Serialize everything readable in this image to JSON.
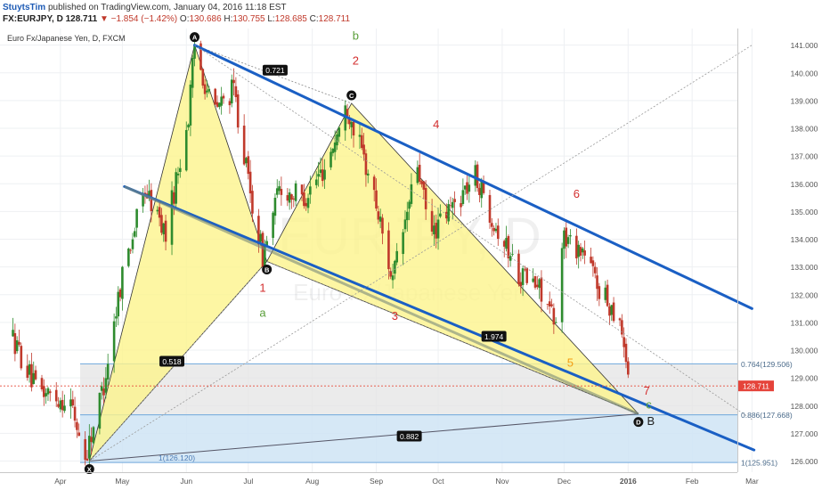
{
  "header": {
    "line1": {
      "user": "StuytsTim",
      "rest": " published on TradingView.com, January 04, 2016 11:18 EST"
    },
    "line2": {
      "symbol": "FX:EURJPY, D",
      "price": " 128.711 ",
      "change": "▼ −1.854 (−1.42%)",
      "open_label": " O:",
      "open": "130.686",
      "high_label": " H:",
      "high": "130.755",
      "low_label": " L:",
      "low": "128.685",
      "close_label": " C:",
      "close": "128.711"
    }
  },
  "chart_data": {
    "type": "candlestick",
    "title": "Euro Fx/Japanese Yen, D, FXCM",
    "watermark_symbol": "EURJPY, D",
    "watermark_name": "Euro Fx/Japanese Yen",
    "last_price": "128.711",
    "y_axis": {
      "range": [
        125.6,
        141.6
      ],
      "ticks": [
        "141.000",
        "140.000",
        "139.000",
        "138.000",
        "137.000",
        "136.000",
        "135.000",
        "134.000",
        "133.000",
        "132.000",
        "131.000",
        "130.000",
        "129.000",
        "128.000",
        "127.000",
        "126.000"
      ]
    },
    "x_axis": {
      "ticks": [
        "Apr",
        "May",
        "Jun",
        "Jul",
        "Aug",
        "Sep",
        "Oct",
        "Nov",
        "Dec",
        "2016",
        "Feb",
        "Mar"
      ]
    },
    "price_path": [
      [
        "2015-03-08",
        130.6
      ],
      [
        "2015-03-20",
        128.6
      ],
      [
        "2015-04-06",
        128.1
      ],
      [
        "2015-04-13",
        126.1
      ],
      [
        "2015-04-22",
        128.8
      ],
      [
        "2015-05-01",
        132.8
      ],
      [
        "2015-05-12",
        135.8
      ],
      [
        "2015-05-22",
        134.2
      ],
      [
        "2015-06-02",
        138.4
      ],
      [
        "2015-06-05",
        141.0
      ],
      [
        "2015-06-14",
        138.6
      ],
      [
        "2015-06-24",
        139.4
      ],
      [
        "2015-07-02",
        135.6
      ],
      [
        "2015-07-08",
        133.4
      ],
      [
        "2015-07-16",
        135.8
      ],
      [
        "2015-07-28",
        135.5
      ],
      [
        "2015-08-07",
        136.6
      ],
      [
        "2015-08-18",
        138.8
      ],
      [
        "2015-08-30",
        135.9
      ],
      [
        "2015-09-09",
        132.5
      ],
      [
        "2015-09-21",
        136.7
      ],
      [
        "2015-09-27",
        134.1
      ],
      [
        "2015-10-08",
        135.2
      ],
      [
        "2015-10-19",
        136.3
      ],
      [
        "2015-10-29",
        134.5
      ],
      [
        "2015-11-09",
        132.8
      ],
      [
        "2015-11-21",
        132.1
      ],
      [
        "2015-11-28",
        130.5
      ],
      [
        "2015-11-30",
        134.1
      ],
      [
        "2015-12-10",
        133.6
      ],
      [
        "2015-12-20",
        131.9
      ],
      [
        "2015-12-28",
        131.2
      ],
      [
        "2016-01-02",
        128.7
      ]
    ],
    "pattern": {
      "points": [
        {
          "label": "X",
          "x": "2015-04-15",
          "y": 126.0
        },
        {
          "label": "A",
          "x": "2015-06-05",
          "y": 141.0
        },
        {
          "label": "B",
          "x": "2015-07-10",
          "y": 133.2
        },
        {
          "label": "C",
          "x": "2015-08-20",
          "y": 138.9
        },
        {
          "label": "D",
          "x": "2016-01-06",
          "y": 127.7
        }
      ],
      "ratios": [
        {
          "text": "0.721",
          "x": "2015-07-14",
          "y": 140.1
        },
        {
          "text": "0.518",
          "x": "2015-05-25",
          "y": 129.6
        },
        {
          "text": "1.974",
          "x": "2015-10-28",
          "y": 130.5
        },
        {
          "text": "0.882",
          "x": "2015-09-17",
          "y": 126.9
        }
      ]
    },
    "fib_levels": [
      {
        "label": "0.764(129.506)",
        "y": 129.506
      },
      {
        "label": "0.886(127.668)",
        "y": 127.668
      },
      {
        "label": "1(125.951)",
        "y": 125.951
      },
      {
        "label": "1(126.120)",
        "y": 126.12
      }
    ],
    "trendlines": [
      {
        "from": [
          "2015-06-05",
          141.0
        ],
        "to": [
          "2016-03-01",
          131.5
        ]
      },
      {
        "from": [
          "2015-05-02",
          135.9
        ],
        "to": [
          "2016-03-02",
          126.4
        ]
      }
    ],
    "annotations": [
      {
        "text": "b",
        "x": "2015-08-22",
        "y": 141.2,
        "color": "#5a9e3a"
      },
      {
        "text": "2",
        "x": "2015-08-22",
        "y": 140.3,
        "color": "#d32f2f"
      },
      {
        "text": "4",
        "x": "2015-09-30",
        "y": 138.0,
        "color": "#d32f2f"
      },
      {
        "text": "6",
        "x": "2015-12-07",
        "y": 135.5,
        "color": "#d32f2f"
      },
      {
        "text": "1",
        "x": "2015-07-08",
        "y": 132.1,
        "color": "#d32f2f"
      },
      {
        "text": "a",
        "x": "2015-07-08",
        "y": 131.2,
        "color": "#5a9e3a"
      },
      {
        "text": "3",
        "x": "2015-09-10",
        "y": 131.1,
        "color": "#d32f2f"
      },
      {
        "text": "5",
        "x": "2015-12-04",
        "y": 129.4,
        "color": "#f39c12"
      },
      {
        "text": "7",
        "x": "2016-01-10",
        "y": 128.4,
        "color": "#d32f2f"
      },
      {
        "text": "c",
        "x": "2016-01-11",
        "y": 127.9,
        "color": "#5a9e3a"
      },
      {
        "text": "B",
        "x": "2016-01-12",
        "y": 127.3,
        "color": "#222222"
      }
    ],
    "colors": {
      "up": "#2e8b2e",
      "down": "#c0392b",
      "pattern_fill": "#fcf48c",
      "trend": "#1a5fc4",
      "fib": "#6fa8dc",
      "zone_upper": "#e4e4e4",
      "zone_lower": "#cfe4f4",
      "midline": "#7a8a7a"
    }
  }
}
